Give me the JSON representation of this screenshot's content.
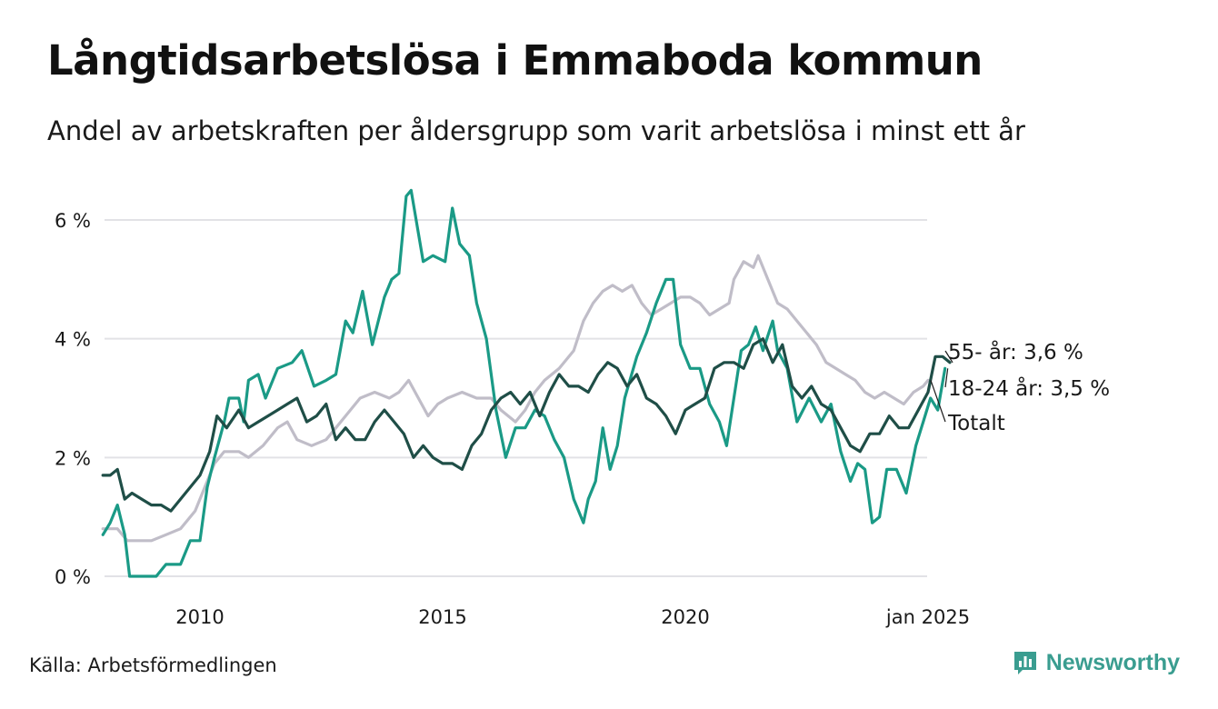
{
  "header": {
    "title": "Långtidsarbetslösa i Emmaboda kommun",
    "subtitle": "Andel av arbetskraften per åldersgrupp som varit arbetslösa i minst ett år"
  },
  "footer": {
    "source": "Källa: Arbetsförmedlingen",
    "brand": "Newsworthy"
  },
  "chart_data": {
    "type": "line",
    "title": "Långtidsarbetslösa i Emmaboda kommun",
    "subtitle": "Andel av arbetskraften per åldersgrupp som varit arbetslösa i minst ett år",
    "xlabel": "",
    "ylabel": "",
    "x_ticks": [
      {
        "year": 2010,
        "label": "2010"
      },
      {
        "year": 2015,
        "label": "2015"
      },
      {
        "year": 2020,
        "label": "2020"
      },
      {
        "year": 2025,
        "label": "jan 2025"
      }
    ],
    "y_ticks": [
      {
        "value": 0,
        "label": "0 %"
      },
      {
        "value": 2,
        "label": "2 %"
      },
      {
        "value": 4,
        "label": "4 %"
      },
      {
        "value": 6,
        "label": "6 %"
      }
    ],
    "xlim": [
      2008.0,
      2025.0
    ],
    "ylim": [
      0,
      6.6
    ],
    "grid": "horizontal",
    "series": [
      {
        "name": "Totalt",
        "end_label": "Totalt",
        "color": "#c0bdc8",
        "points": [
          [
            2008.0,
            0.8
          ],
          [
            2008.3,
            0.8
          ],
          [
            2008.5,
            0.6
          ],
          [
            2008.8,
            0.6
          ],
          [
            2009.0,
            0.6
          ],
          [
            2009.3,
            0.7
          ],
          [
            2009.6,
            0.8
          ],
          [
            2009.9,
            1.1
          ],
          [
            2010.1,
            1.5
          ],
          [
            2010.3,
            1.9
          ],
          [
            2010.5,
            2.1
          ],
          [
            2010.8,
            2.1
          ],
          [
            2011.0,
            2.0
          ],
          [
            2011.3,
            2.2
          ],
          [
            2011.6,
            2.5
          ],
          [
            2011.8,
            2.6
          ],
          [
            2012.0,
            2.3
          ],
          [
            2012.3,
            2.2
          ],
          [
            2012.6,
            2.3
          ],
          [
            2012.8,
            2.5
          ],
          [
            2013.0,
            2.7
          ],
          [
            2013.3,
            3.0
          ],
          [
            2013.6,
            3.1
          ],
          [
            2013.9,
            3.0
          ],
          [
            2014.1,
            3.1
          ],
          [
            2014.3,
            3.3
          ],
          [
            2014.5,
            3.0
          ],
          [
            2014.7,
            2.7
          ],
          [
            2014.9,
            2.9
          ],
          [
            2015.1,
            3.0
          ],
          [
            2015.4,
            3.1
          ],
          [
            2015.7,
            3.0
          ],
          [
            2016.0,
            3.0
          ],
          [
            2016.2,
            2.8
          ],
          [
            2016.5,
            2.6
          ],
          [
            2016.7,
            2.8
          ],
          [
            2016.9,
            3.1
          ],
          [
            2017.1,
            3.3
          ],
          [
            2017.4,
            3.5
          ],
          [
            2017.7,
            3.8
          ],
          [
            2017.9,
            4.3
          ],
          [
            2018.1,
            4.6
          ],
          [
            2018.3,
            4.8
          ],
          [
            2018.5,
            4.9
          ],
          [
            2018.7,
            4.8
          ],
          [
            2018.9,
            4.9
          ],
          [
            2019.1,
            4.6
          ],
          [
            2019.3,
            4.4
          ],
          [
            2019.5,
            4.5
          ],
          [
            2019.7,
            4.6
          ],
          [
            2019.9,
            4.7
          ],
          [
            2020.1,
            4.7
          ],
          [
            2020.3,
            4.6
          ],
          [
            2020.5,
            4.4
          ],
          [
            2020.7,
            4.5
          ],
          [
            2020.9,
            4.6
          ],
          [
            2021.0,
            5.0
          ],
          [
            2021.2,
            5.3
          ],
          [
            2021.4,
            5.2
          ],
          [
            2021.5,
            5.4
          ],
          [
            2021.7,
            5.0
          ],
          [
            2021.9,
            4.6
          ],
          [
            2022.1,
            4.5
          ],
          [
            2022.3,
            4.3
          ],
          [
            2022.5,
            4.1
          ],
          [
            2022.7,
            3.9
          ],
          [
            2022.9,
            3.6
          ],
          [
            2023.1,
            3.5
          ],
          [
            2023.3,
            3.4
          ],
          [
            2023.5,
            3.3
          ],
          [
            2023.7,
            3.1
          ],
          [
            2023.9,
            3.0
          ],
          [
            2024.1,
            3.1
          ],
          [
            2024.3,
            3.0
          ],
          [
            2024.5,
            2.9
          ],
          [
            2024.7,
            3.1
          ],
          [
            2024.9,
            3.2
          ],
          [
            2025.0,
            3.3
          ]
        ]
      },
      {
        "name": "18-24 år",
        "end_label": "18-24 år: 3,5 %",
        "color": "#1a9a86",
        "points": [
          [
            2008.0,
            0.7
          ],
          [
            2008.15,
            0.9
          ],
          [
            2008.3,
            1.2
          ],
          [
            2008.45,
            0.7
          ],
          [
            2008.55,
            0.0
          ],
          [
            2008.8,
            0.0
          ],
          [
            2009.1,
            0.0
          ],
          [
            2009.3,
            0.2
          ],
          [
            2009.6,
            0.2
          ],
          [
            2009.8,
            0.6
          ],
          [
            2010.0,
            0.6
          ],
          [
            2010.15,
            1.5
          ],
          [
            2010.3,
            2.0
          ],
          [
            2010.5,
            2.6
          ],
          [
            2010.6,
            3.0
          ],
          [
            2010.8,
            3.0
          ],
          [
            2010.9,
            2.6
          ],
          [
            2011.0,
            3.3
          ],
          [
            2011.2,
            3.4
          ],
          [
            2011.35,
            3.0
          ],
          [
            2011.6,
            3.5
          ],
          [
            2011.9,
            3.6
          ],
          [
            2012.1,
            3.8
          ],
          [
            2012.35,
            3.2
          ],
          [
            2012.6,
            3.3
          ],
          [
            2012.8,
            3.4
          ],
          [
            2013.0,
            4.3
          ],
          [
            2013.15,
            4.1
          ],
          [
            2013.35,
            4.8
          ],
          [
            2013.55,
            3.9
          ],
          [
            2013.8,
            4.7
          ],
          [
            2013.95,
            5.0
          ],
          [
            2014.1,
            5.1
          ],
          [
            2014.25,
            6.4
          ],
          [
            2014.35,
            6.5
          ],
          [
            2014.6,
            5.3
          ],
          [
            2014.8,
            5.4
          ],
          [
            2015.05,
            5.3
          ],
          [
            2015.2,
            6.2
          ],
          [
            2015.35,
            5.6
          ],
          [
            2015.55,
            5.4
          ],
          [
            2015.7,
            4.6
          ],
          [
            2015.9,
            4.0
          ],
          [
            2016.1,
            2.8
          ],
          [
            2016.3,
            2.0
          ],
          [
            2016.5,
            2.5
          ],
          [
            2016.7,
            2.5
          ],
          [
            2016.9,
            2.8
          ],
          [
            2017.1,
            2.7
          ],
          [
            2017.3,
            2.3
          ],
          [
            2017.5,
            2.0
          ],
          [
            2017.7,
            1.3
          ],
          [
            2017.9,
            0.9
          ],
          [
            2018.0,
            1.3
          ],
          [
            2018.15,
            1.6
          ],
          [
            2018.3,
            2.5
          ],
          [
            2018.45,
            1.8
          ],
          [
            2018.6,
            2.2
          ],
          [
            2018.75,
            3.0
          ],
          [
            2019.0,
            3.7
          ],
          [
            2019.2,
            4.1
          ],
          [
            2019.4,
            4.6
          ],
          [
            2019.6,
            5.0
          ],
          [
            2019.75,
            5.0
          ],
          [
            2019.9,
            3.9
          ],
          [
            2020.1,
            3.5
          ],
          [
            2020.3,
            3.5
          ],
          [
            2020.5,
            2.9
          ],
          [
            2020.7,
            2.6
          ],
          [
            2020.85,
            2.2
          ],
          [
            2021.0,
            3.0
          ],
          [
            2021.15,
            3.8
          ],
          [
            2021.3,
            3.9
          ],
          [
            2021.45,
            4.2
          ],
          [
            2021.6,
            3.8
          ],
          [
            2021.8,
            4.3
          ],
          [
            2021.9,
            3.8
          ],
          [
            2022.1,
            3.5
          ],
          [
            2022.3,
            2.6
          ],
          [
            2022.55,
            3.0
          ],
          [
            2022.8,
            2.6
          ],
          [
            2023.0,
            2.9
          ],
          [
            2023.2,
            2.1
          ],
          [
            2023.4,
            1.6
          ],
          [
            2023.55,
            1.9
          ],
          [
            2023.7,
            1.8
          ],
          [
            2023.85,
            0.9
          ],
          [
            2024.0,
            1.0
          ],
          [
            2024.15,
            1.8
          ],
          [
            2024.35,
            1.8
          ],
          [
            2024.55,
            1.4
          ],
          [
            2024.75,
            2.2
          ],
          [
            2024.9,
            2.6
          ],
          [
            2025.05,
            3.0
          ],
          [
            2025.2,
            2.8
          ],
          [
            2025.35,
            3.5
          ]
        ]
      },
      {
        "name": "55- år",
        "end_label": "55- år: 3,6 %",
        "color": "#1f4e47",
        "points": [
          [
            2008.0,
            1.7
          ],
          [
            2008.15,
            1.7
          ],
          [
            2008.3,
            1.8
          ],
          [
            2008.45,
            1.3
          ],
          [
            2008.6,
            1.4
          ],
          [
            2008.8,
            1.3
          ],
          [
            2009.0,
            1.2
          ],
          [
            2009.2,
            1.2
          ],
          [
            2009.4,
            1.1
          ],
          [
            2009.6,
            1.3
          ],
          [
            2009.8,
            1.5
          ],
          [
            2010.0,
            1.7
          ],
          [
            2010.2,
            2.1
          ],
          [
            2010.35,
            2.7
          ],
          [
            2010.55,
            2.5
          ],
          [
            2010.8,
            2.8
          ],
          [
            2011.0,
            2.5
          ],
          [
            2011.2,
            2.6
          ],
          [
            2011.4,
            2.7
          ],
          [
            2011.6,
            2.8
          ],
          [
            2011.8,
            2.9
          ],
          [
            2012.0,
            3.0
          ],
          [
            2012.2,
            2.6
          ],
          [
            2012.4,
            2.7
          ],
          [
            2012.6,
            2.9
          ],
          [
            2012.8,
            2.3
          ],
          [
            2013.0,
            2.5
          ],
          [
            2013.2,
            2.3
          ],
          [
            2013.4,
            2.3
          ],
          [
            2013.6,
            2.6
          ],
          [
            2013.8,
            2.8
          ],
          [
            2014.0,
            2.6
          ],
          [
            2014.2,
            2.4
          ],
          [
            2014.4,
            2.0
          ],
          [
            2014.6,
            2.2
          ],
          [
            2014.8,
            2.0
          ],
          [
            2015.0,
            1.9
          ],
          [
            2015.2,
            1.9
          ],
          [
            2015.4,
            1.8
          ],
          [
            2015.6,
            2.2
          ],
          [
            2015.8,
            2.4
          ],
          [
            2016.0,
            2.8
          ],
          [
            2016.2,
            3.0
          ],
          [
            2016.4,
            3.1
          ],
          [
            2016.6,
            2.9
          ],
          [
            2016.8,
            3.1
          ],
          [
            2017.0,
            2.7
          ],
          [
            2017.2,
            3.1
          ],
          [
            2017.4,
            3.4
          ],
          [
            2017.6,
            3.2
          ],
          [
            2017.8,
            3.2
          ],
          [
            2018.0,
            3.1
          ],
          [
            2018.2,
            3.4
          ],
          [
            2018.4,
            3.6
          ],
          [
            2018.6,
            3.5
          ],
          [
            2018.8,
            3.2
          ],
          [
            2019.0,
            3.4
          ],
          [
            2019.2,
            3.0
          ],
          [
            2019.4,
            2.9
          ],
          [
            2019.6,
            2.7
          ],
          [
            2019.8,
            2.4
          ],
          [
            2020.0,
            2.8
          ],
          [
            2020.2,
            2.9
          ],
          [
            2020.4,
            3.0
          ],
          [
            2020.6,
            3.5
          ],
          [
            2020.8,
            3.6
          ],
          [
            2021.0,
            3.6
          ],
          [
            2021.2,
            3.5
          ],
          [
            2021.4,
            3.9
          ],
          [
            2021.6,
            4.0
          ],
          [
            2021.8,
            3.6
          ],
          [
            2022.0,
            3.9
          ],
          [
            2022.2,
            3.2
          ],
          [
            2022.4,
            3.0
          ],
          [
            2022.6,
            3.2
          ],
          [
            2022.8,
            2.9
          ],
          [
            2023.0,
            2.8
          ],
          [
            2023.2,
            2.5
          ],
          [
            2023.4,
            2.2
          ],
          [
            2023.6,
            2.1
          ],
          [
            2023.8,
            2.4
          ],
          [
            2024.0,
            2.4
          ],
          [
            2024.2,
            2.7
          ],
          [
            2024.4,
            2.5
          ],
          [
            2024.6,
            2.5
          ],
          [
            2024.8,
            2.8
          ],
          [
            2025.0,
            3.1
          ],
          [
            2025.15,
            3.7
          ],
          [
            2025.3,
            3.7
          ],
          [
            2025.45,
            3.6
          ]
        ]
      }
    ]
  }
}
